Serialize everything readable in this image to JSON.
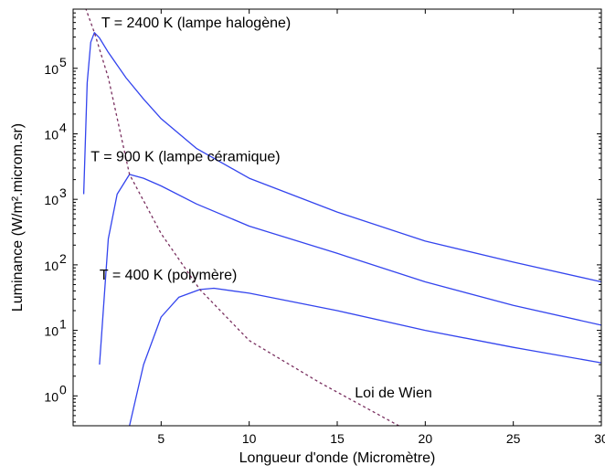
{
  "chart_data": {
    "type": "line",
    "title": "",
    "xlabel": "Longueur d'onde (Micromètre)",
    "ylabel": "Luminance (W/m².microm.sr)",
    "xlim": [
      0,
      30
    ],
    "ylim": [
      0.35,
      800000
    ],
    "yscale": "log",
    "grid": false,
    "x_ticks": [
      5,
      10,
      15,
      20,
      25,
      30
    ],
    "y_ticks": [
      {
        "value": 1,
        "mantissa": "10",
        "exponent": "0"
      },
      {
        "value": 10,
        "mantissa": "10",
        "exponent": "1"
      },
      {
        "value": 100,
        "mantissa": "10",
        "exponent": "2"
      },
      {
        "value": 1000,
        "mantissa": "10",
        "exponent": "3"
      },
      {
        "value": 10000,
        "mantissa": "10",
        "exponent": "4"
      },
      {
        "value": 100000,
        "mantissa": "10",
        "exponent": "5"
      }
    ],
    "series": [
      {
        "color": "#3344ee",
        "style": "solid",
        "points": [
          [
            0.6,
            1200
          ],
          [
            0.8,
            60000
          ],
          [
            1.0,
            250000
          ],
          [
            1.21,
            350000
          ],
          [
            1.5,
            290000
          ],
          [
            2,
            175000
          ],
          [
            3,
            72000
          ],
          [
            4,
            34000
          ],
          [
            5,
            17000
          ],
          [
            7,
            6000
          ],
          [
            10,
            2100
          ],
          [
            15,
            640
          ],
          [
            20,
            230
          ],
          [
            25,
            110
          ],
          [
            30,
            55
          ]
        ]
      },
      {
        "color": "#3344ee",
        "style": "solid",
        "points": [
          [
            1.5,
            3
          ],
          [
            2,
            250
          ],
          [
            2.5,
            1200
          ],
          [
            3.2,
            2400
          ],
          [
            4,
            2100
          ],
          [
            5,
            1600
          ],
          [
            7,
            850
          ],
          [
            10,
            390
          ],
          [
            15,
            150
          ],
          [
            20,
            55
          ],
          [
            25,
            24
          ],
          [
            30,
            12
          ]
        ]
      },
      {
        "color": "#3344ee",
        "style": "solid",
        "points": [
          [
            3.2,
            0.35
          ],
          [
            4,
            3
          ],
          [
            5,
            16
          ],
          [
            6,
            32
          ],
          [
            7.2,
            42
          ],
          [
            8,
            44
          ],
          [
            10,
            37
          ],
          [
            15,
            20
          ],
          [
            20,
            10
          ],
          [
            25,
            5.5
          ],
          [
            30,
            3.2
          ]
        ]
      },
      {
        "color": "#7a3060",
        "style": "dashed",
        "points": [
          [
            0.6,
            1000000
          ],
          [
            1.21,
            350000
          ],
          [
            2,
            72000
          ],
          [
            3.2,
            2400
          ],
          [
            5,
            300
          ],
          [
            7.2,
            42
          ],
          [
            10,
            7
          ],
          [
            14,
            1.6
          ],
          [
            18.5,
            0.35
          ]
        ]
      }
    ],
    "annotations": [
      {
        "text": "T = 2400 K (lampe halogène)",
        "x": 1.6,
        "y": 420000
      },
      {
        "text": "T = 900 K (lampe céramique)",
        "x": 1.0,
        "y": 3800
      },
      {
        "text": "T = 400 K (polymère)",
        "x": 1.5,
        "y": 60
      },
      {
        "text": "Loi de Wien",
        "x": 16,
        "y": 0.95
      }
    ]
  }
}
